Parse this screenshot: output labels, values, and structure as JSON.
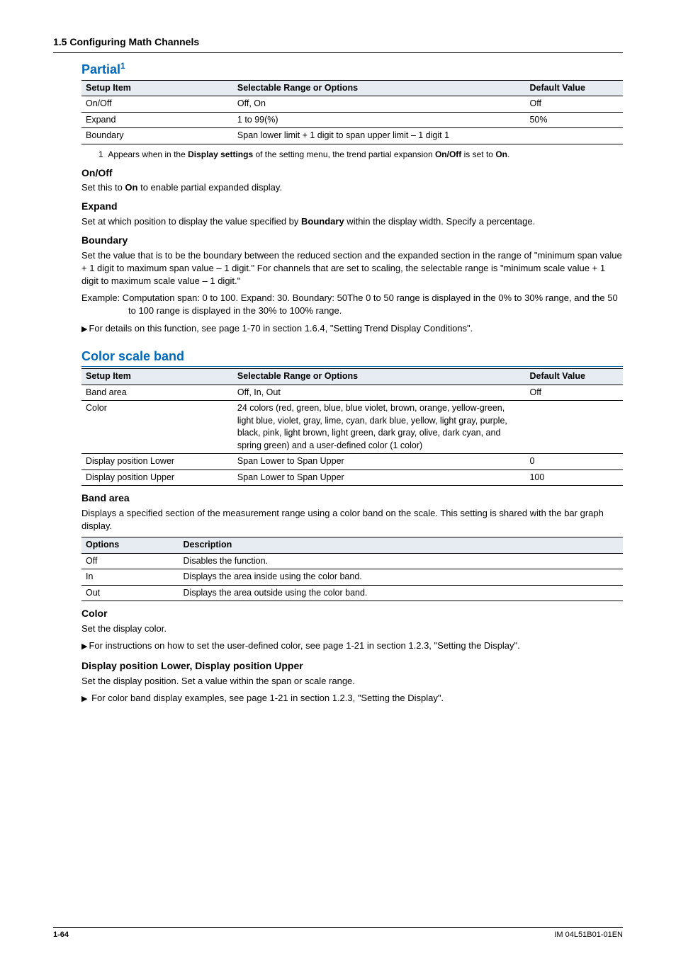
{
  "header": {
    "section_title": "1.5  Configuring Math Channels"
  },
  "partial": {
    "heading": "Partial",
    "heading_sup": "1",
    "table": {
      "headers": {
        "c1": "Setup Item",
        "c2": "Selectable Range or Options",
        "c3": "Default Value"
      },
      "rows": [
        {
          "c1": "On/Off",
          "c2": "Off, On",
          "c3": "Off"
        },
        {
          "c1": "Expand",
          "c2": "1 to 99(%)",
          "c3": "50%"
        },
        {
          "c1": "Boundary",
          "c2": "Span lower limit + 1 digit to span upper limit – 1 digit 1",
          "c3": ""
        }
      ]
    },
    "footnote": "1  Appears when in the Display settings of the setting menu, the trend partial expansion On/Off is set to On.",
    "onoff": {
      "heading": "On/Off",
      "text": "Set this to On to enable partial expanded display."
    },
    "expand": {
      "heading": "Expand",
      "text": "Set at which position to display the value specified by Boundary within the display width. Specify a percentage."
    },
    "boundary": {
      "heading": "Boundary",
      "text1": "Set the value that is to be the boundary between the reduced section and the expanded section in the range of \"minimum span value + 1 digit to maximum span value – 1 digit.\" For channels that are set to scaling, the selectable range is \"minimum scale value + 1 digit to maximum scale value – 1 digit.\"",
      "example": "Example: Computation span: 0 to 100. Expand: 30. Boundary: 50The 0 to 50 range is displayed in the 0% to 30% range, and the 50 to 100 range is displayed in the 30% to 100% range.",
      "ref": "For details on this function, see page 1-70 in section 1.6.4, \"Setting Trend Display Conditions\"."
    }
  },
  "color_scale_band": {
    "heading": "Color scale band",
    "table": {
      "headers": {
        "c1": "Setup Item",
        "c2": "Selectable Range or Options",
        "c3": "Default Value"
      },
      "rows": [
        {
          "c1": "Band area",
          "c2": "Off, In, Out",
          "c3": "Off"
        },
        {
          "c1": "Color",
          "c2": "24 colors (red, green, blue, blue violet, brown, orange, yellow-green, light blue, violet, gray, lime, cyan, dark blue, yellow, light gray, purple, black, pink, light brown, light green, dark gray, olive, dark cyan, and spring green) and a user-defined color (1 color)",
          "c3": ""
        },
        {
          "c1": "Display position Lower",
          "c2": "Span Lower to Span Upper",
          "c3": "0"
        },
        {
          "c1": "Display position Upper",
          "c2": "Span Lower to Span Upper",
          "c3": "100"
        }
      ]
    },
    "band_area": {
      "heading": "Band area",
      "text": "Displays a specified section of the measurement range using a color band on the scale. This setting is shared with the bar graph display.",
      "options_table": {
        "headers": {
          "c1": "Options",
          "c2": "Description"
        },
        "rows": [
          {
            "c1": "Off",
            "c2": "Disables the function."
          },
          {
            "c1": "In",
            "c2": "Displays the area inside using the color band."
          },
          {
            "c1": "Out",
            "c2": "Displays the area outside using the color band."
          }
        ]
      }
    },
    "color": {
      "heading": "Color",
      "text": "Set the display color.",
      "ref": "For instructions on how to set the user-defined color, see page 1-21 in section 1.2.3, \"Setting the Display\"."
    },
    "position": {
      "heading": "Display position Lower, Display position Upper",
      "text": "Set the display position. Set a value within the span or scale range.",
      "ref": " For color band display examples, see page 1-21 in section 1.2.3, \"Setting the Display\"."
    }
  },
  "footer": {
    "page": "1-64",
    "doc": "IM 04L51B01-01EN"
  }
}
